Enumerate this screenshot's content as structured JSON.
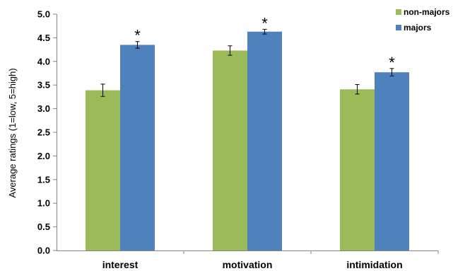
{
  "chart_data": {
    "type": "bar",
    "title": "",
    "xlabel": "",
    "ylabel": "Average ratings (1=low, 5=high)",
    "ylim": [
      0,
      5
    ],
    "yticks": [
      "0.0",
      "0.5",
      "1.0",
      "1.5",
      "2.0",
      "2.5",
      "3.0",
      "3.5",
      "4.0",
      "4.5",
      "5.0"
    ],
    "grid": false,
    "legend_position": "top-right",
    "categories": [
      "interest",
      "motivation",
      "intimidation"
    ],
    "series": [
      {
        "name": "non-majors",
        "color": "#9BBB59",
        "values": [
          3.39,
          4.23,
          3.41
        ],
        "errors": [
          0.13,
          0.1,
          0.1
        ]
      },
      {
        "name": "majors",
        "color": "#4F81BD",
        "values": [
          4.35,
          4.63,
          3.77
        ],
        "errors": [
          0.07,
          0.05,
          0.08
        ]
      }
    ],
    "annotations": [
      {
        "category": "interest",
        "series": "majors",
        "text": "*"
      },
      {
        "category": "motivation",
        "series": "majors",
        "text": "*"
      },
      {
        "category": "intimidation",
        "series": "majors",
        "text": "*"
      }
    ]
  }
}
